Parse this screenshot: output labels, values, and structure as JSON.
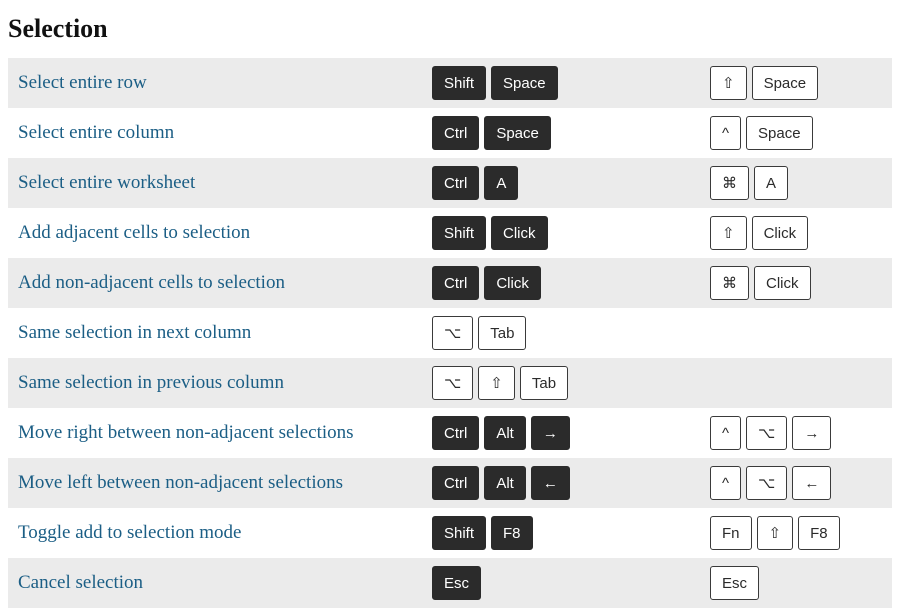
{
  "section_title": "Selection",
  "colors": {
    "stripe_light": "#ffffff",
    "stripe_dark": "#ebebeb",
    "link": "#1b5e85",
    "key_dark_bg": "#2b2b2b",
    "key_dark_fg": "#ffffff",
    "key_light_bg": "#ffffff",
    "key_light_fg": "#2b2b2b",
    "key_light_border": "#3a3a3a"
  },
  "rows": [
    {
      "action": "Select entire row",
      "win": [
        {
          "label": "Shift",
          "theme": "dark"
        },
        {
          "label": "Space",
          "theme": "dark"
        }
      ],
      "mac": [
        {
          "label": "⇧",
          "theme": "light"
        },
        {
          "label": "Space",
          "theme": "light"
        }
      ]
    },
    {
      "action": "Select entire column",
      "win": [
        {
          "label": "Ctrl",
          "theme": "dark"
        },
        {
          "label": "Space",
          "theme": "dark"
        }
      ],
      "mac": [
        {
          "label": "^",
          "theme": "light"
        },
        {
          "label": "Space",
          "theme": "light"
        }
      ]
    },
    {
      "action": "Select entire worksheet",
      "win": [
        {
          "label": "Ctrl",
          "theme": "dark"
        },
        {
          "label": "A",
          "theme": "dark"
        }
      ],
      "mac": [
        {
          "label": "⌘",
          "theme": "light"
        },
        {
          "label": "A",
          "theme": "light"
        }
      ]
    },
    {
      "action": "Add adjacent cells to selection",
      "win": [
        {
          "label": "Shift",
          "theme": "dark"
        },
        {
          "label": "Click",
          "theme": "dark"
        }
      ],
      "mac": [
        {
          "label": "⇧",
          "theme": "light"
        },
        {
          "label": "Click",
          "theme": "light"
        }
      ]
    },
    {
      "action": "Add non-adjacent cells to selection",
      "win": [
        {
          "label": "Ctrl",
          "theme": "dark"
        },
        {
          "label": "Click",
          "theme": "dark"
        }
      ],
      "mac": [
        {
          "label": "⌘",
          "theme": "light"
        },
        {
          "label": "Click",
          "theme": "light"
        }
      ]
    },
    {
      "action": "Same selection in next column",
      "win": [
        {
          "label": "⌥",
          "theme": "light"
        },
        {
          "label": "Tab",
          "theme": "light"
        }
      ],
      "mac": []
    },
    {
      "action": "Same selection in previous column",
      "win": [
        {
          "label": "⌥",
          "theme": "light"
        },
        {
          "label": "⇧",
          "theme": "light"
        },
        {
          "label": "Tab",
          "theme": "light"
        }
      ],
      "mac": []
    },
    {
      "action": "Move right between non-adjacent selections",
      "win": [
        {
          "label": "Ctrl",
          "theme": "dark"
        },
        {
          "label": "Alt",
          "theme": "dark"
        },
        {
          "label": "→",
          "theme": "dark"
        }
      ],
      "mac": [
        {
          "label": "^",
          "theme": "light"
        },
        {
          "label": "⌥",
          "theme": "light"
        },
        {
          "label": "→",
          "theme": "light"
        }
      ]
    },
    {
      "action": "Move left between non-adjacent selections",
      "win": [
        {
          "label": "Ctrl",
          "theme": "dark"
        },
        {
          "label": "Alt",
          "theme": "dark"
        },
        {
          "label": "←",
          "theme": "dark"
        }
      ],
      "mac": [
        {
          "label": "^",
          "theme": "light"
        },
        {
          "label": "⌥",
          "theme": "light"
        },
        {
          "label": "←",
          "theme": "light"
        }
      ]
    },
    {
      "action": "Toggle add to selection mode",
      "win": [
        {
          "label": "Shift",
          "theme": "dark"
        },
        {
          "label": "F8",
          "theme": "dark"
        }
      ],
      "mac": [
        {
          "label": "Fn",
          "theme": "light"
        },
        {
          "label": "⇧",
          "theme": "light"
        },
        {
          "label": "F8",
          "theme": "light"
        }
      ]
    },
    {
      "action": "Cancel selection",
      "win": [
        {
          "label": "Esc",
          "theme": "dark"
        }
      ],
      "mac": [
        {
          "label": "Esc",
          "theme": "light"
        }
      ]
    }
  ]
}
